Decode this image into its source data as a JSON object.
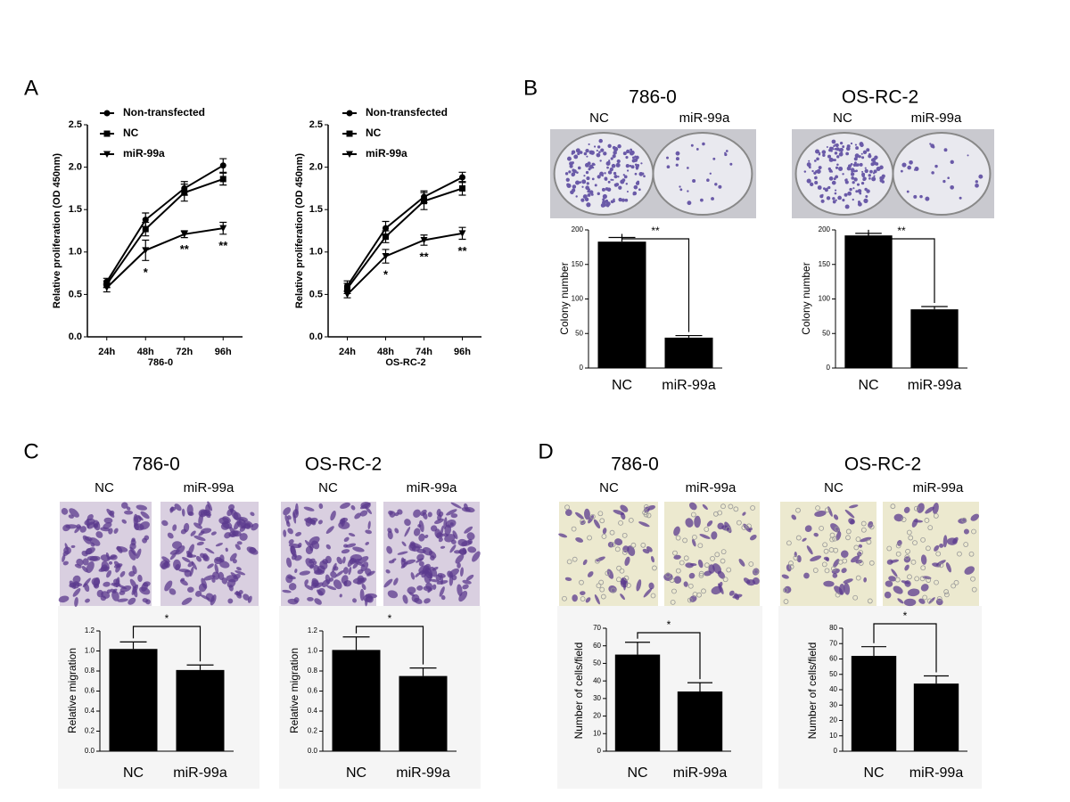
{
  "panels": [
    "A",
    "B",
    "C",
    "D"
  ],
  "chart_data": [
    {
      "type": "line",
      "xlabel": "786-0",
      "ylabel": "Relative proliferation (OD 450nm)",
      "categories": [
        "24h",
        "48h",
        "72h",
        "96h"
      ],
      "series": [
        {
          "name": "Non-transfected",
          "color": "#000000",
          "marker": "circle",
          "values": [
            0.65,
            1.38,
            1.75,
            2.02
          ],
          "errors": [
            0.04,
            0.08,
            0.08,
            0.08
          ]
        },
        {
          "name": "NC",
          "color": "#000000",
          "marker": "square",
          "values": [
            0.62,
            1.27,
            1.7,
            1.86
          ],
          "errors": [
            0.04,
            0.08,
            0.1,
            0.07
          ]
        },
        {
          "name": "miR-99a",
          "color": "#000000",
          "marker": "triangle-down",
          "values": [
            0.58,
            1.02,
            1.21,
            1.28
          ],
          "errors": [
            0.05,
            0.12,
            0.04,
            0.07
          ]
        }
      ],
      "annotations": [
        "*",
        "**",
        "**"
      ],
      "ylim": [
        0,
        2.5
      ],
      "yticks": [
        {
          "value": 0,
          "label": "0.0"
        },
        0.5,
        {
          "value": 1,
          "label": "1.0"
        },
        1.5,
        {
          "value": 2,
          "label": "2.0"
        },
        2.5
      ]
    },
    {
      "type": "line",
      "xlabel": "OS-RC-2",
      "ylabel": "Relative proliferation (OD 450nm)",
      "categories": [
        "24h",
        "48h",
        "74h",
        "96h"
      ],
      "series": [
        {
          "name": "Non-transfected",
          "color": "#000000",
          "marker": "circle",
          "values": [
            0.6,
            1.28,
            1.65,
            1.88
          ],
          "errors": [
            0.06,
            0.08,
            0.07,
            0.06
          ]
        },
        {
          "name": "NC",
          "color": "#000000",
          "marker": "square",
          "values": [
            0.57,
            1.18,
            1.6,
            1.75
          ],
          "errors": [
            0.06,
            0.07,
            0.1,
            0.08
          ]
        },
        {
          "name": "miR-99a",
          "color": "#000000",
          "marker": "triangle-down",
          "values": [
            0.5,
            0.95,
            1.14,
            1.22
          ],
          "errors": [
            0.04,
            0.08,
            0.06,
            0.07
          ]
        }
      ],
      "annotations": [
        "*",
        "**",
        "**"
      ],
      "ylim": [
        0,
        2.5
      ],
      "yticks": [
        {
          "value": 0,
          "label": "0.0"
        },
        0.5,
        {
          "value": 1,
          "label": "1.0"
        },
        1.5,
        {
          "value": 2,
          "label": "2.0"
        },
        2.5
      ]
    },
    {
      "type": "bar",
      "title": "786-0",
      "ylabel": "Colony number",
      "categories": [
        "NC",
        "miR-99a"
      ],
      "values": [
        183,
        44
      ],
      "errors": [
        6,
        3
      ],
      "color": "#000000",
      "annotation": "**",
      "ylim": [
        0,
        200
      ],
      "yticks": [
        0,
        50,
        100,
        150,
        200
      ]
    },
    {
      "type": "bar",
      "title": "OS-RC-2",
      "ylabel": "Colony number",
      "categories": [
        "NC",
        "miR-99a"
      ],
      "values": [
        192,
        85
      ],
      "errors": [
        3,
        4
      ],
      "color": "#000000",
      "annotation": "**",
      "ylim": [
        0,
        200
      ],
      "yticks": [
        0,
        50,
        100,
        150,
        200
      ]
    },
    {
      "type": "bar",
      "title": "786-0",
      "ylabel": "Relative migration",
      "categories": [
        "NC",
        "miR-99a"
      ],
      "values": [
        1.02,
        0.81
      ],
      "errors": [
        0.07,
        0.05
      ],
      "color": "#000000",
      "annotation": "*",
      "ylim": [
        0,
        1.2
      ],
      "yticks": [
        {
          "value": 0,
          "label": "0.0"
        },
        0.2,
        0.4,
        0.6,
        0.8,
        {
          "value": 1,
          "label": "1.0"
        },
        1.2
      ]
    },
    {
      "type": "bar",
      "title": "OS-RC-2",
      "ylabel": "Relative migration",
      "categories": [
        "NC",
        "miR-99a"
      ],
      "values": [
        1.01,
        0.75
      ],
      "errors": [
        0.13,
        0.08
      ],
      "color": "#000000",
      "annotation": "*",
      "ylim": [
        0,
        1.2
      ],
      "yticks": [
        {
          "value": 0,
          "label": "0.0"
        },
        0.2,
        0.4,
        0.6,
        0.8,
        {
          "value": 1,
          "label": "1.0"
        },
        1.2
      ]
    },
    {
      "type": "bar",
      "title": "786-0",
      "ylabel": "Number of cells/field",
      "categories": [
        "NC",
        "miR-99a"
      ],
      "values": [
        55,
        34
      ],
      "errors": [
        7,
        5
      ],
      "color": "#000000",
      "annotation": "*",
      "ylim": [
        0,
        70
      ],
      "yticks": [
        0,
        10,
        20,
        30,
        40,
        50,
        60,
        70
      ]
    },
    {
      "type": "bar",
      "title": "OS-RC-2",
      "ylabel": "Number of cells/field",
      "categories": [
        "NC",
        "miR-99a"
      ],
      "values": [
        62,
        44
      ],
      "errors": [
        6,
        5
      ],
      "color": "#000000",
      "annotation": "*",
      "ylim": [
        0,
        80
      ],
      "yticks": [
        0,
        10,
        20,
        30,
        40,
        50,
        60,
        70,
        80
      ]
    }
  ]
}
